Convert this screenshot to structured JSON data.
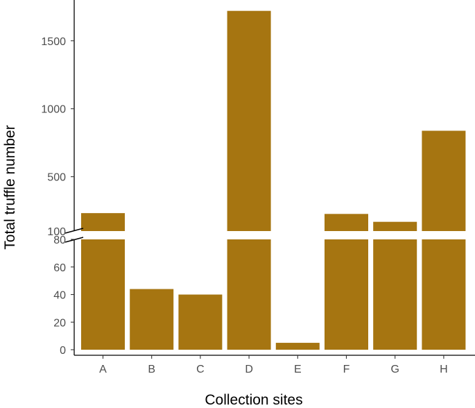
{
  "chart_data": {
    "type": "bar",
    "xlabel": "Collection sites",
    "ylabel": "Total truffle number",
    "categories": [
      "A",
      "B",
      "C",
      "D",
      "E",
      "F",
      "G",
      "H"
    ],
    "values": [
      232,
      44,
      40,
      1720,
      5,
      226,
      168,
      838
    ],
    "bar_color": "#A67511",
    "broken_y_axis": {
      "lower_segment": {
        "ylim": [
          0,
          80
        ],
        "ticks": [
          "0",
          "20",
          "40",
          "60",
          "80"
        ],
        "tick_values": [
          0,
          20,
          40,
          60,
          80
        ]
      },
      "upper_segment": {
        "ylim": [
          100,
          1800
        ],
        "ticks": [
          "100",
          "500",
          "1000",
          "1500"
        ],
        "tick_values": [
          100,
          500,
          1000,
          1500
        ]
      }
    },
    "grid": false,
    "legend": "none"
  }
}
